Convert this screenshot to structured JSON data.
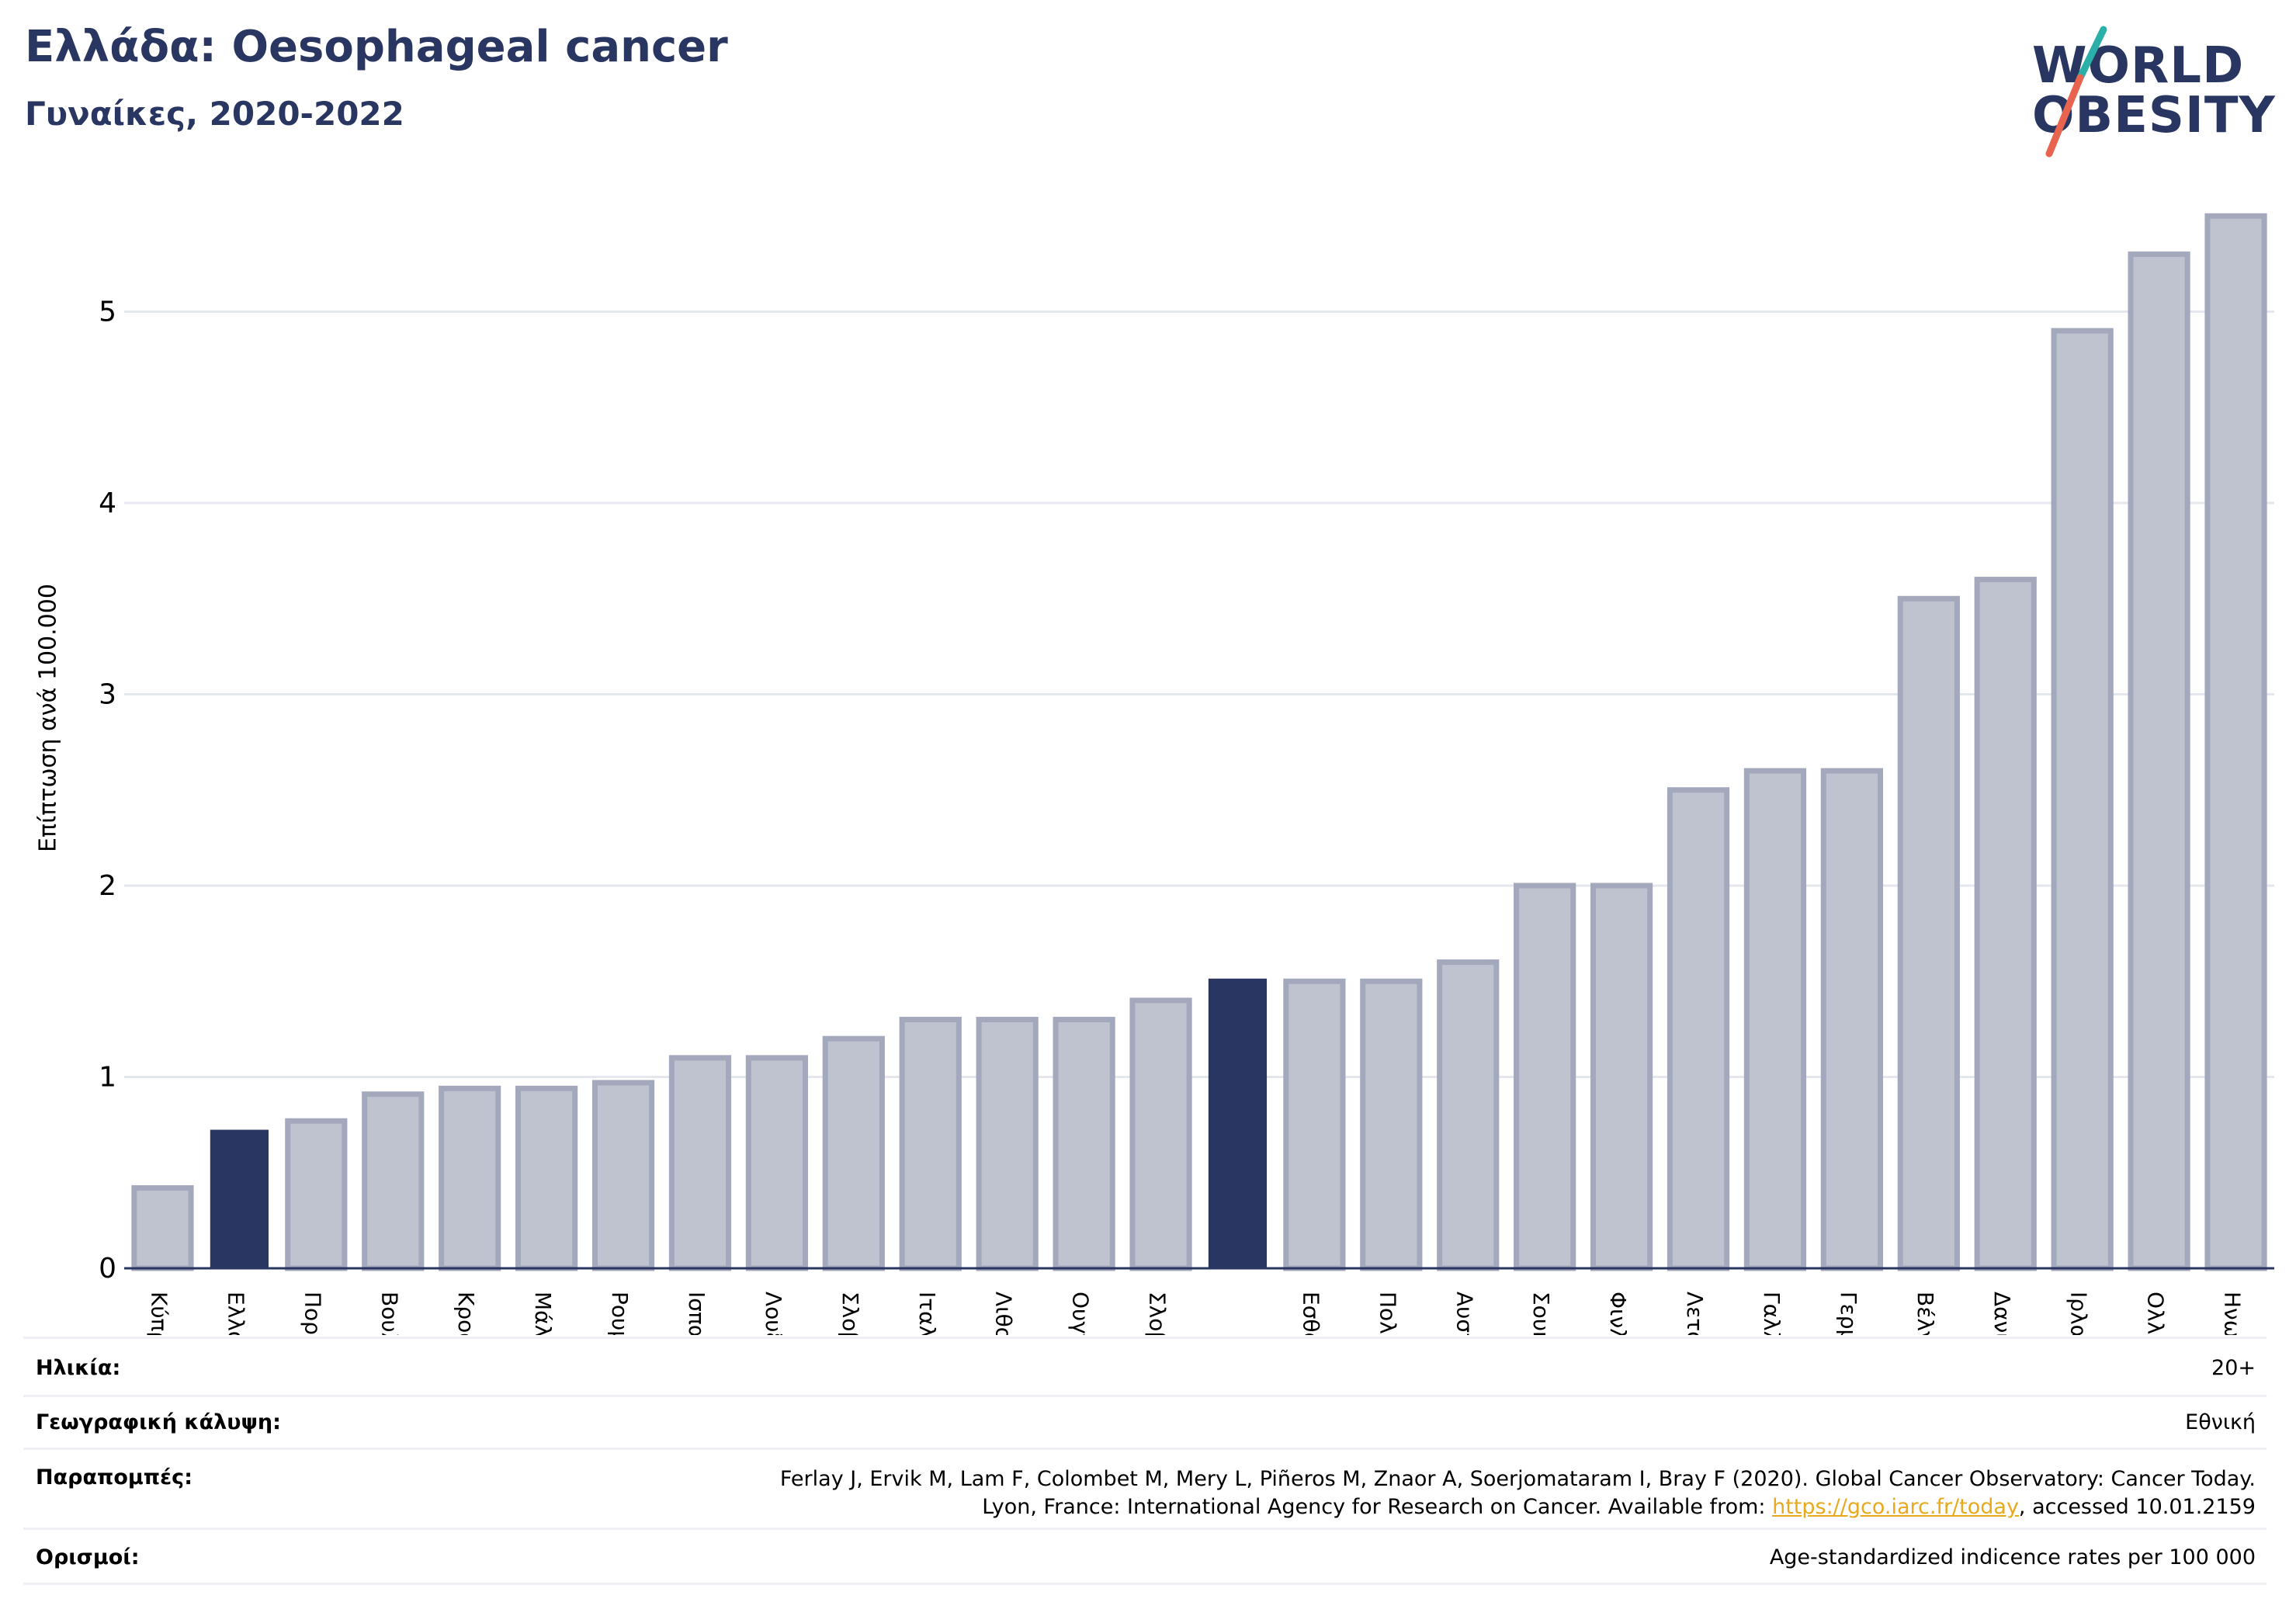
{
  "header": {
    "title": "Ελλάδα: Oesophageal cancer",
    "subtitle": "Γυναίκες, 2020-2022"
  },
  "logo": {
    "line1": "WORLD",
    "line2": "OBESITY",
    "colors": {
      "text": "#2a3662",
      "slash_teal": "#2ab0a8",
      "slash_red": "#e8644f"
    }
  },
  "chart_data": {
    "type": "bar",
    "ylabel": "Επίπτωση ανά 100.000",
    "ylim": [
      0,
      5.7
    ],
    "yticks": [
      0,
      1,
      2,
      3,
      4,
      5
    ],
    "grid": true,
    "categories": [
      "Κύπρος",
      "Ελλάδα",
      "Πορτογαλία",
      "Βουλγαρία",
      "Κροατία",
      "Μάλτα",
      "Ρουμανία",
      "Ισπανία",
      "Λουξεμβούργο",
      "Σλοβακία",
      "Ιταλία",
      "Λιθουανία",
      "Ουγγαρία",
      "Σλοβενία",
      "",
      "Εσθονία",
      "Πολωνία",
      "Αυστρία",
      "Σουηδία",
      "Φινλανδία",
      "Λετονία",
      "Γαλλία",
      "Γερμανία",
      "Βέλγιο",
      "Δανία",
      "Ιρλανδία",
      "Ολλανδία",
      "Ηνωμένο Βασίλειο"
    ],
    "values": [
      0.42,
      0.72,
      0.77,
      0.91,
      0.94,
      0.94,
      0.97,
      1.1,
      1.1,
      1.2,
      1.3,
      1.3,
      1.3,
      1.4,
      1.51,
      1.5,
      1.5,
      1.6,
      2.0,
      2.0,
      2.5,
      2.6,
      2.6,
      3.5,
      3.6,
      4.9,
      5.3,
      5.5
    ],
    "highlighted": [
      1,
      14
    ],
    "colors": {
      "bar": "#bfc2cf",
      "bar_edge": "#a3a8bd",
      "highlight": "#2a3662",
      "grid": "#e5e7ee",
      "axis": "#2a3662"
    }
  },
  "info": {
    "age_label": "Ηλικία:",
    "age_value": "20+",
    "coverage_label": "Γεωγραφική κάλυψη:",
    "coverage_value": "Εθνική",
    "refs_label": "Παραπομπές:",
    "refs_line1": "Ferlay J, Ervik M, Lam F, Colombet M, Mery L, Piñeros M, Znaor A, Soerjomataram I, Bray F (2020). Global Cancer Observatory: Cancer Today.",
    "refs_line2_pre": "Lyon, France: International Agency for Research on Cancer. Available from: ",
    "refs_link": "https://gco.iarc.fr/today",
    "refs_line2_post": ", accessed 10.01.2159",
    "defs_label": "Ορισμοί:",
    "defs_value": "Age-standardized indicence rates per 100 000"
  }
}
